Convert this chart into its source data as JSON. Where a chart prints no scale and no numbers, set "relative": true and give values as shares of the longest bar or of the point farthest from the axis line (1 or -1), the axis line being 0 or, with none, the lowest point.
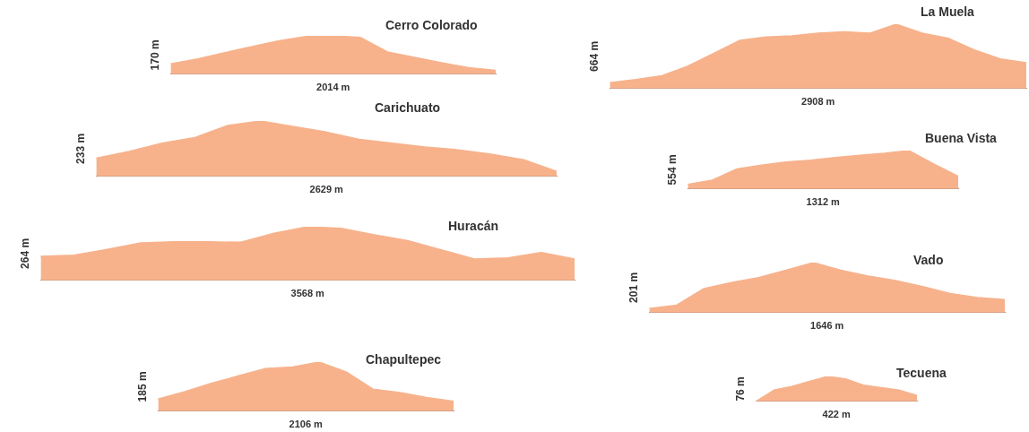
{
  "chart_data": [
    {
      "type": "area",
      "title": "Cerro Colorado",
      "ylabel": "170 m",
      "xlabel": "2014 m",
      "relative": true,
      "color": "#f7b28c",
      "categories": [
        null,
        null,
        null,
        null,
        null,
        null,
        null,
        null,
        null,
        null,
        null,
        null,
        null
      ],
      "values": [
        0.27,
        0.4,
        0.56,
        0.72,
        0.87,
        0.98,
        1.0,
        0.96,
        0.58,
        0.44,
        0.3,
        0.17,
        0.1
      ]
    },
    {
      "type": "area",
      "title": "Carichuato",
      "ylabel": "233 m",
      "xlabel": "2629 m",
      "relative": true,
      "color": "#f7b28c",
      "categories": [
        null,
        null,
        null,
        null,
        null,
        null,
        null,
        null,
        null,
        null,
        null,
        null,
        null,
        null,
        null
      ],
      "values": [
        0.33,
        0.45,
        0.6,
        0.7,
        0.92,
        1.0,
        0.9,
        0.8,
        0.67,
        0.6,
        0.53,
        0.48,
        0.4,
        0.3,
        0.09
      ]
    },
    {
      "type": "area",
      "title": "Huracán",
      "ylabel": "264 m",
      "xlabel": "3568 m",
      "relative": true,
      "color": "#f7b28c",
      "categories": [
        null,
        null,
        null,
        null,
        null,
        null,
        null,
        null,
        null,
        null,
        null,
        null,
        null,
        null,
        null,
        null,
        null
      ],
      "values": [
        0.45,
        0.47,
        0.58,
        0.7,
        0.72,
        0.72,
        0.71,
        0.88,
        1.0,
        0.97,
        0.85,
        0.74,
        0.57,
        0.4,
        0.42,
        0.52,
        0.4
      ]
    },
    {
      "type": "area",
      "title": "Chapultepec",
      "ylabel": "185 m",
      "xlabel": "2106 m",
      "relative": true,
      "color": "#f7b28c",
      "categories": [
        null,
        null,
        null,
        null,
        null,
        null,
        null,
        null,
        null,
        null,
        null,
        null
      ],
      "values": [
        0.25,
        0.4,
        0.57,
        0.72,
        0.87,
        0.9,
        1.0,
        0.8,
        0.45,
        0.38,
        0.28,
        0.2
      ]
    },
    {
      "type": "area",
      "title": "La Muela",
      "ylabel": "664 m",
      "xlabel": "2908 m",
      "relative": true,
      "color": "#f7b28c",
      "categories": [
        null,
        null,
        null,
        null,
        null,
        null,
        null,
        null,
        null,
        null,
        null,
        null,
        null,
        null,
        null,
        null,
        null
      ],
      "values": [
        0.09,
        0.14,
        0.2,
        0.35,
        0.55,
        0.75,
        0.8,
        0.82,
        0.86,
        0.88,
        0.86,
        1.0,
        0.86,
        0.78,
        0.6,
        0.46,
        0.4
      ]
    },
    {
      "type": "area",
      "title": "Buena Vista",
      "ylabel": "554 m",
      "xlabel": "1312 m",
      "relative": true,
      "color": "#f7b28c",
      "categories": [
        null,
        null,
        null,
        null,
        null,
        null,
        null,
        null,
        null,
        null,
        null,
        null
      ],
      "values": [
        0.12,
        0.23,
        0.52,
        0.62,
        0.7,
        0.75,
        0.82,
        0.88,
        0.93,
        1.0,
        0.65,
        0.33
      ]
    },
    {
      "type": "area",
      "title": "Vado",
      "ylabel": "201 m",
      "xlabel": "1646 m",
      "relative": true,
      "color": "#f7b28c",
      "categories": [
        null,
        null,
        null,
        null,
        null,
        null,
        null,
        null,
        null,
        null,
        null,
        null,
        null,
        null
      ],
      "values": [
        0.08,
        0.15,
        0.48,
        0.6,
        0.7,
        0.85,
        1.0,
        0.85,
        0.73,
        0.64,
        0.52,
        0.38,
        0.3,
        0.26
      ]
    },
    {
      "type": "area",
      "title": "Tecuena",
      "ylabel": "76 m",
      "xlabel": "422 m",
      "relative": true,
      "color": "#f7b28c",
      "categories": [
        null,
        null,
        null,
        null,
        null,
        null,
        null,
        null,
        null,
        null
      ],
      "values": [
        0,
        0.45,
        0.6,
        0.8,
        1.0,
        0.9,
        0.65,
        0.55,
        0.45,
        0.24
      ]
    }
  ]
}
